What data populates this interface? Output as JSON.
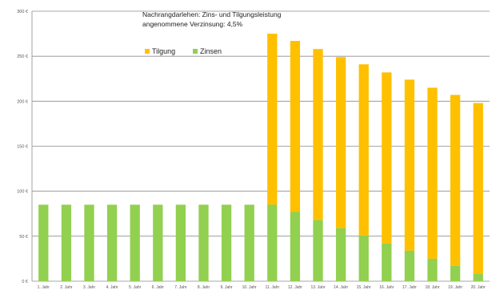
{
  "chart_data": {
    "type": "bar",
    "stacked": true,
    "title_lines": [
      "Nachrangdarlehen: Zins- und Tilgungsleistung",
      "angenommene Verzinsung: 4,5%"
    ],
    "categories": [
      "1. Jahr",
      "2. Jahr",
      "3. Jahr",
      "4. Jahr",
      "5. Jahr",
      "6. Jahr",
      "7. Jahr",
      "8. Jahr",
      "9. Jahr",
      "10. Jahr",
      "11. Jahr",
      "12. Jahr",
      "13. Jahr",
      "14. Jahr",
      "15. Jahr",
      "16. Jahr",
      "17. Jahr",
      "18. Jahr",
      "19. Jahr",
      "20. Jahr"
    ],
    "series": [
      {
        "name": "Zinsen",
        "color": "#92D050",
        "values": [
          85,
          85,
          85,
          85,
          85,
          85,
          85,
          85,
          85,
          85,
          85,
          77,
          68,
          59,
          51,
          42,
          34,
          25,
          17,
          8
        ]
      },
      {
        "name": "Tilgung",
        "color": "#FFC000",
        "values": [
          0,
          0,
          0,
          0,
          0,
          0,
          0,
          0,
          0,
          0,
          190,
          190,
          190,
          190,
          190,
          190,
          190,
          190,
          190,
          190
        ]
      }
    ],
    "legend_order": [
      "Tilgung",
      "Zinsen"
    ],
    "legend_position": "top-left inside plot",
    "ylim": [
      0,
      300
    ],
    "yticks": [
      0,
      50,
      100,
      150,
      200,
      250,
      300
    ],
    "ytick_labels": [
      "0 €",
      "50 €",
      "100 €",
      "150 €",
      "200 €",
      "250 €",
      "300 €"
    ],
    "grid": "horizontal"
  }
}
